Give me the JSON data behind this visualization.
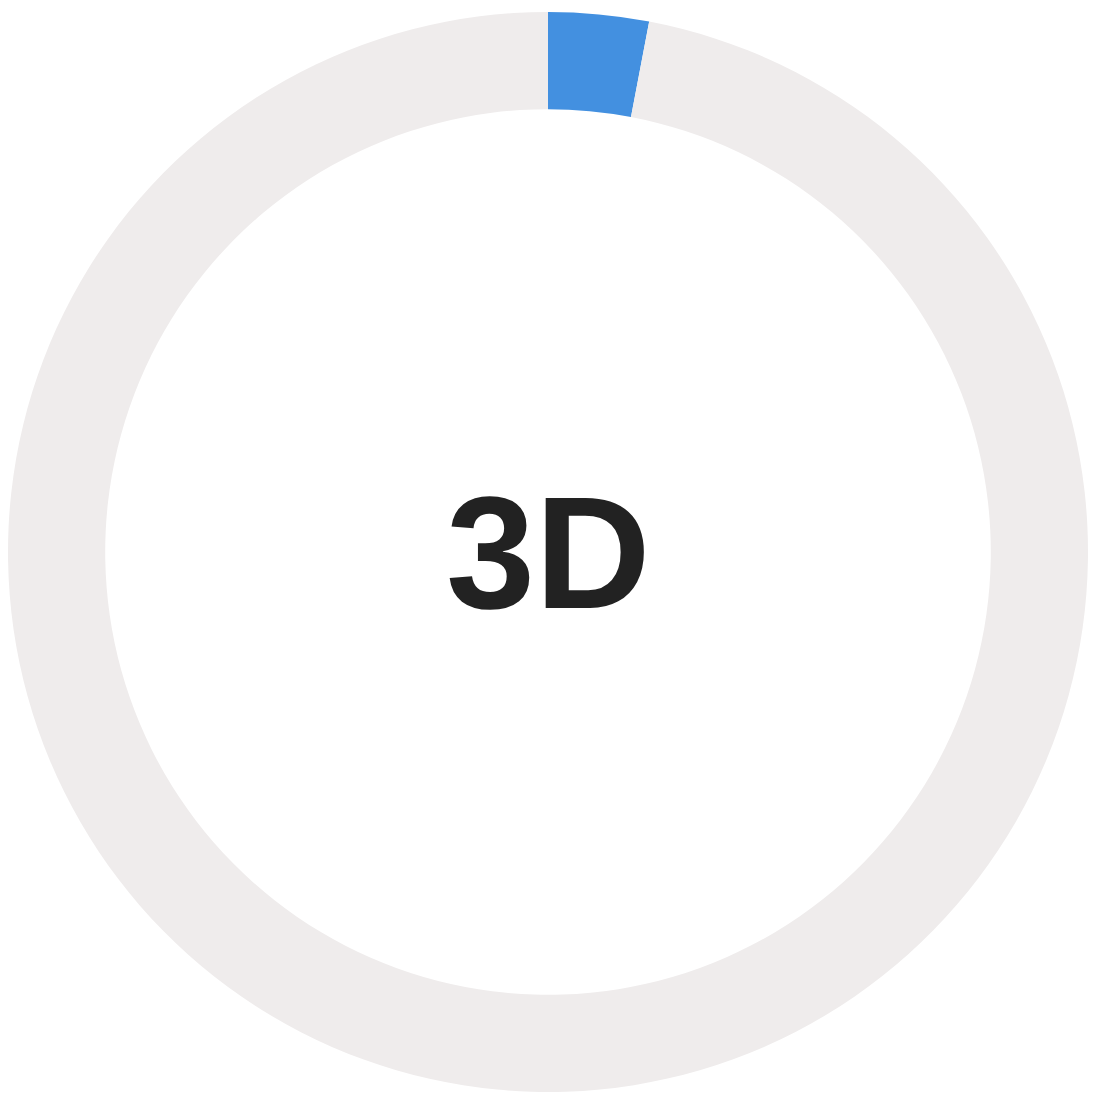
{
  "chart_data": {
    "type": "donut",
    "categories": [
      null,
      null
    ],
    "values": [
      3,
      97
    ],
    "colors": [
      "#4390e0",
      "#efecec"
    ],
    "annotations": [
      "3D"
    ],
    "legend": false
  }
}
